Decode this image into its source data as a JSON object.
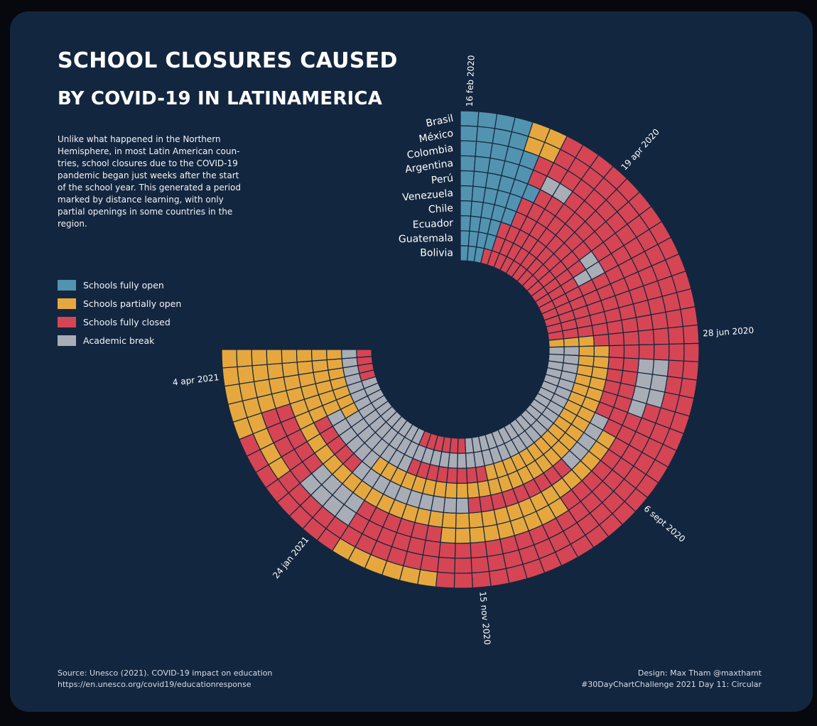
{
  "title_line1": "SCHOOL CLOSURES CAUSED",
  "title_line2": "BY COVID-19 IN LATINAMERICA",
  "description": "Unlike what happened in the Northern Hemisphere, in most Latin American coun-tries, school closures due to the COVID-19 pandemic began just weeks after the start of the school year. This generated a period marked by distance learning, with only partial openings in some countries in the region.",
  "legend": [
    {
      "label": "Schools fully open",
      "color": "#5293b0"
    },
    {
      "label": "Schools partially open",
      "color": "#e6a83e"
    },
    {
      "label": "Schools fully closed",
      "color": "#d64554"
    },
    {
      "label": "Academic break",
      "color": "#a9adb6"
    }
  ],
  "footer": {
    "source_line1": "Source: Unesco (2021). COVID-19 impact on education",
    "source_line2": "https://en.unesco.org/covid19/educationresponse",
    "credit_line1": "Design: Max Tham @maxthamt",
    "credit_line2": "#30DayChartChallenge 2021 Day 11: Circular"
  },
  "chart_data": {
    "type": "heatmap",
    "layout": "radial",
    "status_codes": {
      "O": "Schools fully open",
      "P": "Schools partially open",
      "C": "Schools fully closed",
      "B": "Academic break"
    },
    "status_colors": {
      "O": "#5293b0",
      "P": "#e6a83e",
      "C": "#d64554",
      "B": "#a9adb6"
    },
    "weeks": 61,
    "countries": [
      "Brasil",
      "México",
      "Colombia",
      "Argentina",
      "Perú",
      "Venezuela",
      "Chile",
      "Ecuador",
      "Guatemala",
      "Bolivia"
    ],
    "date_labels": [
      {
        "label": "16 feb 2020",
        "week": 0
      },
      {
        "label": "19 apr 2020",
        "week": 9
      },
      {
        "label": "28 jun 2020",
        "week": 19
      },
      {
        "label": "6 sept 2020",
        "week": 29
      },
      {
        "label": "15 nov 2020",
        "week": 39
      },
      {
        "label": "24 jan 2021",
        "week": 49
      },
      {
        "label": "4 apr 2021",
        "week": 59
      }
    ],
    "rows": [
      "OOOOPPCCCCCCCCCCCCCCCCCCCCCCCCCCCCCCCCCCCCPPPPPPCCCCCCCCPPPPP",
      "OOOOPPCCCCCCCCCCCCCCCCCCCCCCCCCCCCCCCCCCCCCCCCCCCCCCCPPPPPPPP",
      "OOOOOCCCCCCCCCCCCCCCCBBBCCCCCCCCCCCCCCCCCCCCCCCCBBBBCCCCCPPPP",
      "OOOOOCBBCCCCCCCCCCCCCBBBBCCCCCCCCPPPPPPPPPCCCCCCBBBBCCCCCPPPP",
      "OOOOOOCCCCCCCCCCCCCCCCCCCCCPPPPPPPPPPPPPPPPPPPPPPPPPPPPPPPPPP",
      "OOOOOCCCCCCCBBCCCCCCCCCCCCBBBBBCCCCCCCCCBBBBBBBBBBCCCCCPPPPPP",
      "OOOOOCCCCCCCCBCCCCCCPPPPPPPPPPPPPPPPPPPPPPPPPPPPPBBBBBBPPPPPPP",
      "OOOOCCCCCCCCCCCCCCCPPPPPPPPPPPPPPPPPPPCCCCCCCCBBBBBBBBPPPPPPPP",
      "OOOOCCCCCCCCCCCCCCCPBBBBBBBBBBBBBBBBBBBBBBBBBBBBBBBBBBBBBBBBBB",
      "OOOCCCCCCCCCCCCCCCCPBBBBBBBBBBBBBBBBBBBBCCCCCCBBBBBBBBBBBCCCC"
    ]
  }
}
